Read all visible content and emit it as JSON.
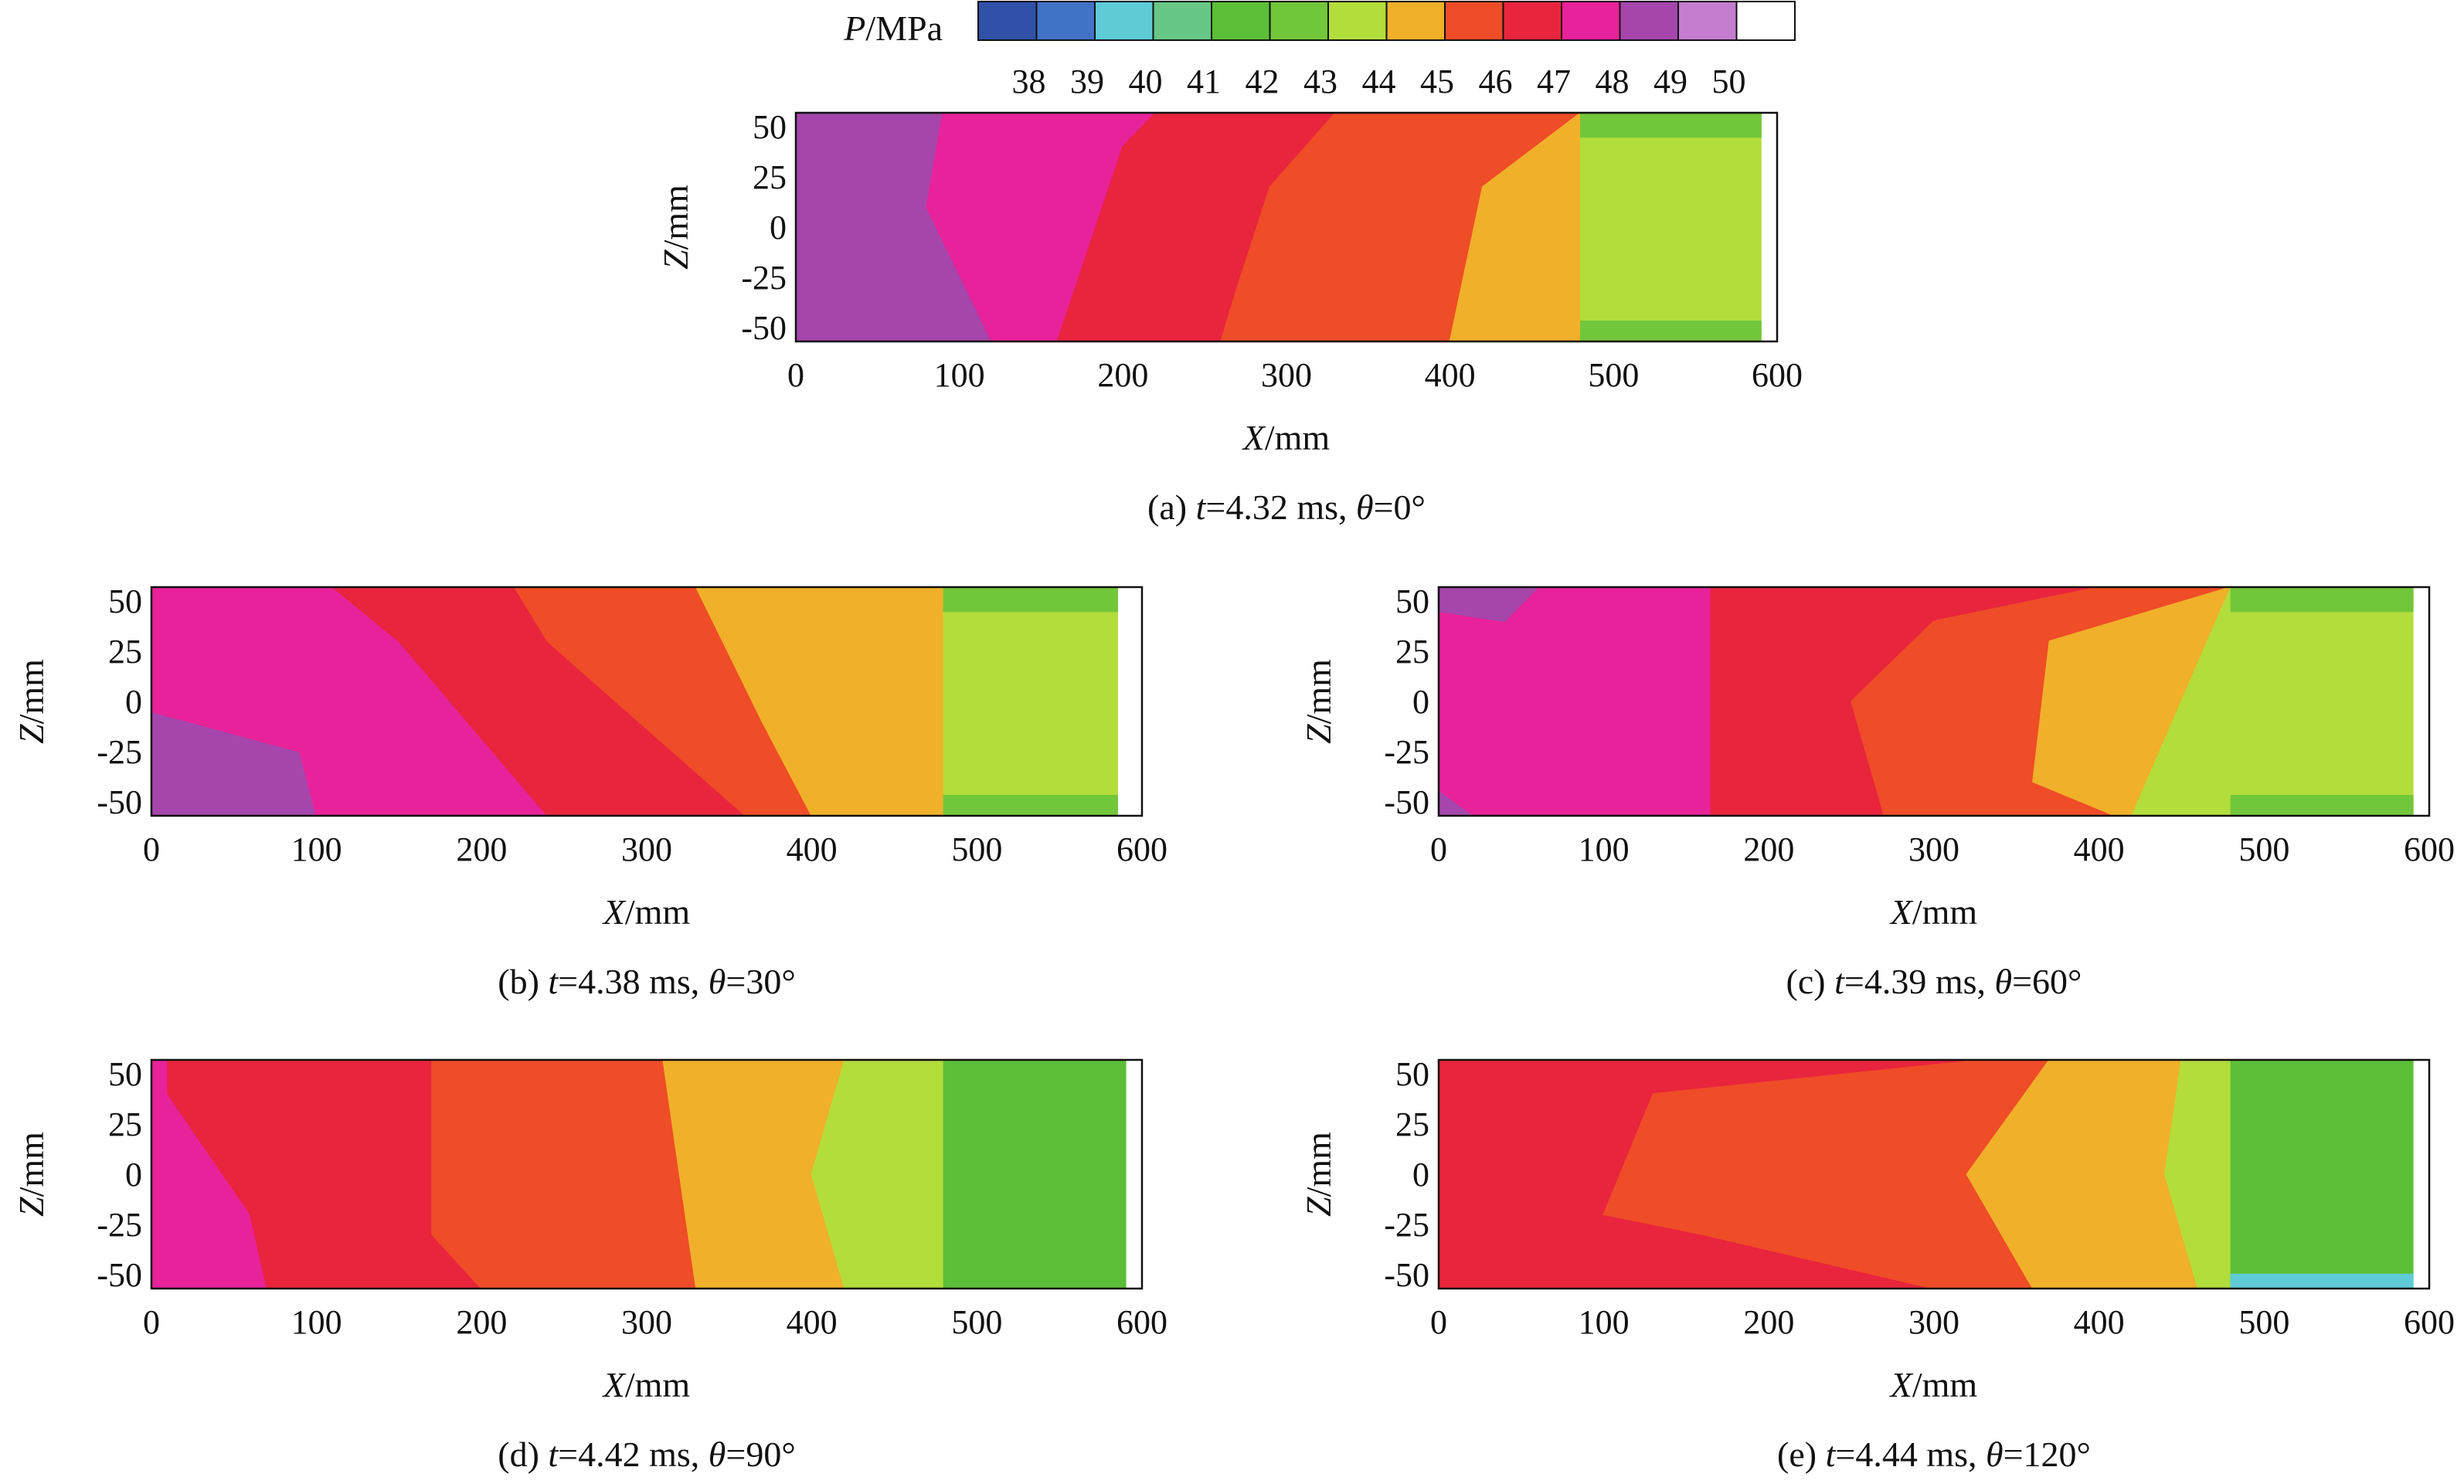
{
  "colorbar": {
    "label_var": "P",
    "label_unit": "/MPa",
    "ticks": [
      "38",
      "39",
      "40",
      "41",
      "42",
      "43",
      "44",
      "45",
      "46",
      "47",
      "48",
      "49",
      "50"
    ],
    "colors": [
      "#2f51a8",
      "#4272c6",
      "#5fcbd6",
      "#68c784",
      "#5cbf38",
      "#72c63a",
      "#b3dd3b",
      "#f0b02a",
      "#ef4c28",
      "#e9243d",
      "#e8229a",
      "#a646ac",
      "#c47dce",
      "#ffffff"
    ]
  },
  "chart_data": [
    {
      "type": "heatmap",
      "panel": "a",
      "caption": {
        "prefix": "(a) ",
        "t": "t",
        "t_value": "=4.32 ms, ",
        "theta": "θ",
        "theta_value": "=0°"
      },
      "xlabel": {
        "var": "X",
        "unit": "/mm"
      },
      "ylabel": {
        "var": "Z",
        "unit": "/mm"
      },
      "xlim": [
        0,
        600
      ],
      "ylim": [
        -57,
        57
      ],
      "xticks": [
        0,
        100,
        200,
        300,
        400,
        500,
        600
      ],
      "yticks": [
        50,
        25,
        0,
        -25,
        -50
      ],
      "regions": [
        {
          "color": "#a646ac",
          "pts": [
            [
              0,
              57
            ],
            [
              0,
              -57
            ],
            [
              120,
              -57
            ],
            [
              80,
              10
            ],
            [
              90,
              57
            ]
          ]
        },
        {
          "color": "#e8229a",
          "pts": [
            [
              90,
              57
            ],
            [
              220,
              57
            ],
            [
              200,
              40
            ],
            [
              160,
              -57
            ],
            [
              120,
              -57
            ],
            [
              80,
              10
            ]
          ]
        },
        {
          "color": "#e9243d",
          "pts": [
            [
              220,
              57
            ],
            [
              330,
              57
            ],
            [
              290,
              20
            ],
            [
              270,
              -30
            ],
            [
              260,
              -57
            ],
            [
              160,
              -57
            ],
            [
              200,
              40
            ]
          ]
        },
        {
          "color": "#ef4c28",
          "pts": [
            [
              330,
              57
            ],
            [
              480,
              57
            ],
            [
              420,
              20
            ],
            [
              400,
              -57
            ],
            [
              260,
              -57
            ],
            [
              270,
              -30
            ],
            [
              290,
              20
            ]
          ]
        },
        {
          "color": "#f0b02a",
          "pts": [
            [
              480,
              57
            ],
            [
              480,
              -57
            ],
            [
              400,
              -57
            ],
            [
              420,
              20
            ]
          ]
        },
        {
          "color": "#b3dd3b",
          "pts": [
            [
              480,
              57
            ],
            [
              590,
              57
            ],
            [
              590,
              -57
            ],
            [
              480,
              -57
            ]
          ]
        },
        {
          "color": "#72c63a",
          "pts": [
            [
              480,
              57
            ],
            [
              590,
              57
            ],
            [
              590,
              45
            ],
            [
              480,
              45
            ]
          ]
        },
        {
          "color": "#72c63a",
          "pts": [
            [
              480,
              -47
            ],
            [
              590,
              -47
            ],
            [
              590,
              -57
            ],
            [
              480,
              -57
            ]
          ]
        }
      ]
    },
    {
      "type": "heatmap",
      "panel": "b",
      "caption": {
        "prefix": "(b) ",
        "t": "t",
        "t_value": "=4.38 ms, ",
        "theta": "θ",
        "theta_value": "=30°"
      },
      "xlabel": {
        "var": "X",
        "unit": "/mm"
      },
      "ylabel": {
        "var": "Z",
        "unit": "/mm"
      },
      "xlim": [
        0,
        600
      ],
      "ylim": [
        -57,
        57
      ],
      "xticks": [
        0,
        100,
        200,
        300,
        400,
        500,
        600
      ],
      "yticks": [
        50,
        25,
        0,
        -25,
        -50
      ],
      "regions": [
        {
          "color": "#a646ac",
          "pts": [
            [
              0,
              -5
            ],
            [
              0,
              -57
            ],
            [
              100,
              -57
            ],
            [
              90,
              -25
            ]
          ]
        },
        {
          "color": "#e8229a",
          "pts": [
            [
              0,
              57
            ],
            [
              110,
              57
            ],
            [
              150,
              30
            ],
            [
              240,
              -57
            ],
            [
              100,
              -57
            ],
            [
              90,
              -25
            ],
            [
              0,
              -5
            ]
          ]
        },
        {
          "color": "#e9243d",
          "pts": [
            [
              110,
              57
            ],
            [
              220,
              57
            ],
            [
              240,
              30
            ],
            [
              360,
              -57
            ],
            [
              240,
              -57
            ],
            [
              150,
              30
            ]
          ]
        },
        {
          "color": "#ef4c28",
          "pts": [
            [
              220,
              57
            ],
            [
              330,
              57
            ],
            [
              370,
              -10
            ],
            [
              400,
              -57
            ],
            [
              360,
              -57
            ],
            [
              240,
              30
            ]
          ]
        },
        {
          "color": "#f0b02a",
          "pts": [
            [
              330,
              57
            ],
            [
              480,
              57
            ],
            [
              480,
              -57
            ],
            [
              400,
              -57
            ],
            [
              370,
              -10
            ]
          ]
        },
        {
          "color": "#b3dd3b",
          "pts": [
            [
              480,
              57
            ],
            [
              585,
              57
            ],
            [
              585,
              -57
            ],
            [
              480,
              -57
            ]
          ]
        },
        {
          "color": "#72c63a",
          "pts": [
            [
              480,
              57
            ],
            [
              585,
              57
            ],
            [
              585,
              45
            ],
            [
              480,
              45
            ]
          ]
        },
        {
          "color": "#72c63a",
          "pts": [
            [
              480,
              -47
            ],
            [
              585,
              -47
            ],
            [
              585,
              -57
            ],
            [
              480,
              -57
            ]
          ]
        }
      ]
    },
    {
      "type": "heatmap",
      "panel": "c",
      "caption": {
        "prefix": "(c) ",
        "t": "t",
        "t_value": "=4.39 ms, ",
        "theta": "θ",
        "theta_value": "=60°"
      },
      "xlabel": {
        "var": "X",
        "unit": "/mm"
      },
      "ylabel": {
        "var": "Z",
        "unit": "/mm"
      },
      "xlim": [
        0,
        600
      ],
      "ylim": [
        -57,
        57
      ],
      "xticks": [
        0,
        100,
        200,
        300,
        400,
        500,
        600
      ],
      "yticks": [
        50,
        25,
        0,
        -25,
        -50
      ],
      "regions": [
        {
          "color": "#e8229a",
          "pts": [
            [
              0,
              57
            ],
            [
              165,
              57
            ],
            [
              165,
              -57
            ],
            [
              0,
              -57
            ]
          ]
        },
        {
          "color": "#a646ac",
          "pts": [
            [
              0,
              57
            ],
            [
              60,
              57
            ],
            [
              40,
              40
            ],
            [
              0,
              45
            ]
          ]
        },
        {
          "color": "#a646ac",
          "pts": [
            [
              0,
              -45
            ],
            [
              20,
              -57
            ],
            [
              0,
              -57
            ]
          ]
        },
        {
          "color": "#e9243d",
          "pts": [
            [
              165,
              57
            ],
            [
              480,
              57
            ],
            [
              300,
              40
            ],
            [
              250,
              0
            ],
            [
              270,
              -57
            ],
            [
              165,
              -57
            ]
          ]
        },
        {
          "color": "#ef4c28",
          "pts": [
            [
              300,
              40
            ],
            [
              400,
              57
            ],
            [
              480,
              57
            ],
            [
              370,
              30
            ],
            [
              360,
              -40
            ],
            [
              410,
              -57
            ],
            [
              270,
              -57
            ],
            [
              250,
              0
            ]
          ]
        },
        {
          "color": "#f0b02a",
          "pts": [
            [
              370,
              30
            ],
            [
              480,
              57
            ],
            [
              420,
              -57
            ],
            [
              410,
              -57
            ],
            [
              360,
              -40
            ]
          ]
        },
        {
          "color": "#b3dd3b",
          "pts": [
            [
              480,
              57
            ],
            [
              590,
              57
            ],
            [
              590,
              -57
            ],
            [
              420,
              -57
            ]
          ]
        },
        {
          "color": "#72c63a",
          "pts": [
            [
              480,
              57
            ],
            [
              590,
              57
            ],
            [
              590,
              45
            ],
            [
              480,
              45
            ]
          ]
        },
        {
          "color": "#72c63a",
          "pts": [
            [
              480,
              -47
            ],
            [
              590,
              -47
            ],
            [
              590,
              -57
            ],
            [
              480,
              -57
            ]
          ]
        }
      ]
    },
    {
      "type": "heatmap",
      "panel": "d",
      "caption": {
        "prefix": "(d) ",
        "t": "t",
        "t_value": "=4.42 ms, ",
        "theta": "θ",
        "theta_value": "=90°"
      },
      "xlabel": {
        "var": "X",
        "unit": "/mm"
      },
      "ylabel": {
        "var": "Z",
        "unit": "/mm"
      },
      "xlim": [
        0,
        600
      ],
      "ylim": [
        -57,
        57
      ],
      "xticks": [
        0,
        100,
        200,
        300,
        400,
        500,
        600
      ],
      "yticks": [
        50,
        25,
        0,
        -25,
        -50
      ],
      "regions": [
        {
          "color": "#e8229a",
          "pts": [
            [
              0,
              57
            ],
            [
              10,
              57
            ],
            [
              10,
              40
            ],
            [
              60,
              -20
            ],
            [
              70,
              -57
            ],
            [
              0,
              -57
            ]
          ]
        },
        {
          "color": "#e9243d",
          "pts": [
            [
              10,
              57
            ],
            [
              170,
              57
            ],
            [
              170,
              -30
            ],
            [
              200,
              -57
            ],
            [
              70,
              -57
            ],
            [
              60,
              -20
            ],
            [
              10,
              40
            ]
          ]
        },
        {
          "color": "#ef4c28",
          "pts": [
            [
              170,
              57
            ],
            [
              310,
              57
            ],
            [
              320,
              0
            ],
            [
              330,
              -57
            ],
            [
              200,
              -57
            ],
            [
              170,
              -30
            ]
          ]
        },
        {
          "color": "#f0b02a",
          "pts": [
            [
              310,
              57
            ],
            [
              420,
              57
            ],
            [
              400,
              0
            ],
            [
              420,
              -57
            ],
            [
              330,
              -57
            ],
            [
              320,
              0
            ]
          ]
        },
        {
          "color": "#b3dd3b",
          "pts": [
            [
              420,
              57
            ],
            [
              480,
              57
            ],
            [
              480,
              -57
            ],
            [
              420,
              -57
            ],
            [
              400,
              0
            ]
          ]
        },
        {
          "color": "#5cbf38",
          "pts": [
            [
              480,
              57
            ],
            [
              590,
              57
            ],
            [
              590,
              -57
            ],
            [
              480,
              -57
            ]
          ]
        }
      ]
    },
    {
      "type": "heatmap",
      "panel": "e",
      "caption": {
        "prefix": "(e) ",
        "t": "t",
        "t_value": "=4.44 ms, ",
        "theta": "θ",
        "theta_value": "=120°"
      },
      "xlabel": {
        "var": "X",
        "unit": "/mm"
      },
      "ylabel": {
        "var": "Z",
        "unit": "/mm"
      },
      "xlim": [
        0,
        600
      ],
      "ylim": [
        -57,
        57
      ],
      "xticks": [
        0,
        100,
        200,
        300,
        400,
        500,
        600
      ],
      "yticks": [
        50,
        25,
        0,
        -25,
        -50
      ],
      "regions": [
        {
          "color": "#e9243d",
          "pts": [
            [
              0,
              57
            ],
            [
              330,
              57
            ],
            [
              130,
              40
            ],
            [
              100,
              -20
            ],
            [
              160,
              -30
            ],
            [
              300,
              -57
            ],
            [
              0,
              -57
            ]
          ]
        },
        {
          "color": "#ef4c28",
          "pts": [
            [
              130,
              40
            ],
            [
              330,
              57
            ],
            [
              370,
              57
            ],
            [
              320,
              0
            ],
            [
              360,
              -57
            ],
            [
              300,
              -57
            ],
            [
              160,
              -30
            ],
            [
              100,
              -20
            ]
          ]
        },
        {
          "color": "#f0b02a",
          "pts": [
            [
              370,
              57
            ],
            [
              450,
              57
            ],
            [
              440,
              0
            ],
            [
              460,
              -57
            ],
            [
              360,
              -57
            ],
            [
              320,
              0
            ]
          ]
        },
        {
          "color": "#b3dd3b",
          "pts": [
            [
              450,
              57
            ],
            [
              480,
              57
            ],
            [
              480,
              -57
            ],
            [
              460,
              -57
            ],
            [
              440,
              0
            ]
          ]
        },
        {
          "color": "#5cbf38",
          "pts": [
            [
              480,
              57
            ],
            [
              590,
              57
            ],
            [
              590,
              -57
            ],
            [
              480,
              -57
            ]
          ]
        },
        {
          "color": "#5fcbd6",
          "pts": [
            [
              480,
              -50
            ],
            [
              590,
              -50
            ],
            [
              590,
              -57
            ],
            [
              480,
              -57
            ]
          ]
        }
      ]
    }
  ]
}
